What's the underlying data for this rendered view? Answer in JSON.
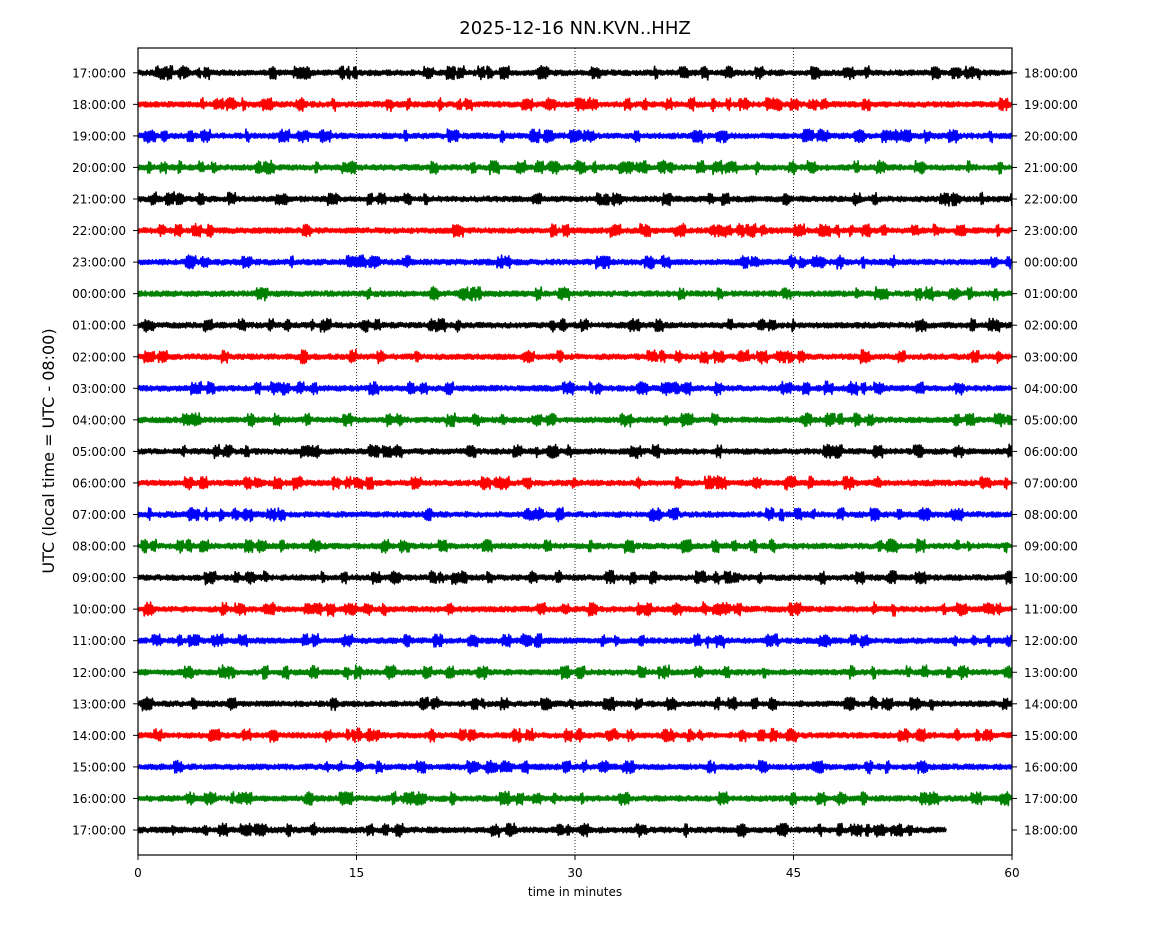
{
  "chart_data": {
    "type": "line",
    "title": "2025-12-16 NN.KVN..HHZ",
    "xlabel": "time in minutes",
    "ylabel": "UTC (local time = UTC - 08:00)",
    "xlim": [
      0,
      60
    ],
    "x_ticks": [
      "0",
      "15",
      "30",
      "45",
      "60"
    ],
    "x_tick_values": [
      0,
      15,
      30,
      45,
      60
    ],
    "grid": "vertical dotted lines at 15, 30, 45 minutes",
    "colors": [
      "#000000",
      "#ff0000",
      "#0000ff",
      "#008000"
    ],
    "series": [
      {
        "left_label": "17:00:00",
        "right_label": "18:00:00",
        "color": "#000000",
        "duration_minutes": 60
      },
      {
        "left_label": "18:00:00",
        "right_label": "19:00:00",
        "color": "#ff0000",
        "duration_minutes": 60
      },
      {
        "left_label": "19:00:00",
        "right_label": "20:00:00",
        "color": "#0000ff",
        "duration_minutes": 60
      },
      {
        "left_label": "20:00:00",
        "right_label": "21:00:00",
        "color": "#008000",
        "duration_minutes": 60
      },
      {
        "left_label": "21:00:00",
        "right_label": "22:00:00",
        "color": "#000000",
        "duration_minutes": 60
      },
      {
        "left_label": "22:00:00",
        "right_label": "23:00:00",
        "color": "#ff0000",
        "duration_minutes": 60
      },
      {
        "left_label": "23:00:00",
        "right_label": "00:00:00",
        "color": "#0000ff",
        "duration_minutes": 60
      },
      {
        "left_label": "00:00:00",
        "right_label": "01:00:00",
        "color": "#008000",
        "duration_minutes": 60
      },
      {
        "left_label": "01:00:00",
        "right_label": "02:00:00",
        "color": "#000000",
        "duration_minutes": 60
      },
      {
        "left_label": "02:00:00",
        "right_label": "03:00:00",
        "color": "#ff0000",
        "duration_minutes": 60
      },
      {
        "left_label": "03:00:00",
        "right_label": "04:00:00",
        "color": "#0000ff",
        "duration_minutes": 60
      },
      {
        "left_label": "04:00:00",
        "right_label": "05:00:00",
        "color": "#008000",
        "duration_minutes": 60
      },
      {
        "left_label": "05:00:00",
        "right_label": "06:00:00",
        "color": "#000000",
        "duration_minutes": 60
      },
      {
        "left_label": "06:00:00",
        "right_label": "07:00:00",
        "color": "#ff0000",
        "duration_minutes": 60
      },
      {
        "left_label": "07:00:00",
        "right_label": "08:00:00",
        "color": "#0000ff",
        "duration_minutes": 60
      },
      {
        "left_label": "08:00:00",
        "right_label": "09:00:00",
        "color": "#008000",
        "duration_minutes": 60
      },
      {
        "left_label": "09:00:00",
        "right_label": "10:00:00",
        "color": "#000000",
        "duration_minutes": 60
      },
      {
        "left_label": "10:00:00",
        "right_label": "11:00:00",
        "color": "#ff0000",
        "duration_minutes": 60
      },
      {
        "left_label": "11:00:00",
        "right_label": "12:00:00",
        "color": "#0000ff",
        "duration_minutes": 60
      },
      {
        "left_label": "12:00:00",
        "right_label": "13:00:00",
        "color": "#008000",
        "duration_minutes": 60
      },
      {
        "left_label": "13:00:00",
        "right_label": "14:00:00",
        "color": "#000000",
        "duration_minutes": 60
      },
      {
        "left_label": "14:00:00",
        "right_label": "15:00:00",
        "color": "#ff0000",
        "duration_minutes": 60
      },
      {
        "left_label": "15:00:00",
        "right_label": "16:00:00",
        "color": "#0000ff",
        "duration_minutes": 60
      },
      {
        "left_label": "16:00:00",
        "right_label": "17:00:00",
        "color": "#008000",
        "duration_minutes": 60
      },
      {
        "left_label": "17:00:00",
        "right_label": "18:00:00",
        "color": "#000000",
        "duration_minutes": 55.5
      }
    ]
  }
}
